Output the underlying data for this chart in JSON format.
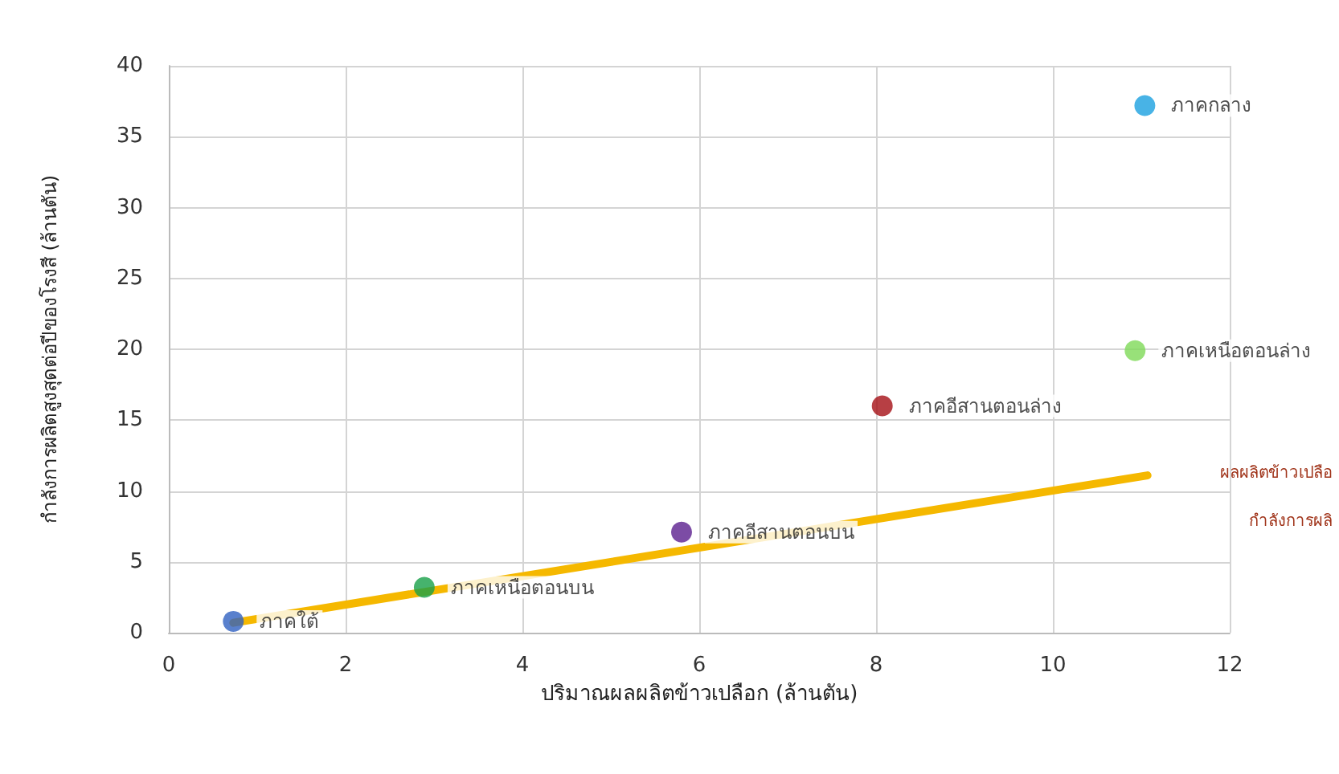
{
  "chart_data": {
    "type": "scatter",
    "xlabel": "ปริมาณผลผลิตข้าวเปลือก (ล้านตัน)",
    "ylabel": "กำลังการผลิตสูงสุดต่อปีของโรงสี (ล้านตัน)",
    "xlim": [
      0,
      12
    ],
    "xticks": [
      0,
      2,
      4,
      6,
      8,
      10,
      12
    ],
    "ylim": [
      0,
      40
    ],
    "yticks": [
      0,
      5,
      10,
      15,
      20,
      25,
      30,
      35,
      40
    ],
    "grid": true,
    "marker": "circle",
    "annotations": [
      "ผลผลิตข้าวเปลือ",
      "กำลังการผลิ"
    ],
    "series": [
      {
        "name": "ภาคกลาง",
        "color": "#1aa0e0",
        "x": [
          11.04
        ],
        "values": [
          37.2
        ]
      },
      {
        "name": "ภาคเหนือตอนล่าง",
        "color": "#7ed957",
        "x": [
          10.93
        ],
        "values": [
          19.9
        ]
      },
      {
        "name": "ภาคอีสานตอนล่าง",
        "color": "#a50f15",
        "x": [
          8.07
        ],
        "values": [
          16.0
        ]
      },
      {
        "name": "ภาคอีสานตอนบน",
        "color": "#5b1f8f",
        "x": [
          5.8
        ],
        "values": [
          7.1
        ]
      },
      {
        "name": "ภาคเหนือตอนบน",
        "color": "#18a048",
        "x": [
          2.89
        ],
        "values": [
          3.2
        ]
      },
      {
        "name": "ภาคใต้",
        "color": "#3060c0",
        "x": [
          0.73
        ],
        "values": [
          0.8
        ]
      },
      {
        "type": "line",
        "color": "#f5b800",
        "x": [
          0.73,
          11.07
        ],
        "values": [
          0.7,
          11.1
        ],
        "marker": "none"
      }
    ]
  }
}
